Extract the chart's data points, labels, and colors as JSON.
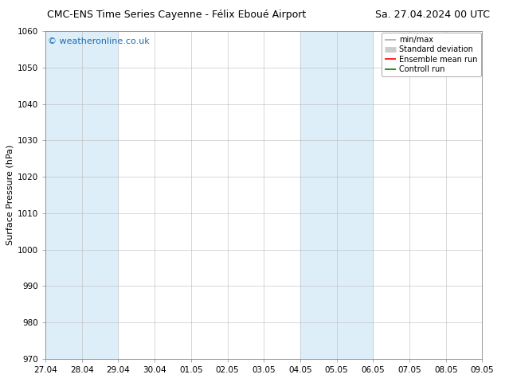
{
  "title_left": "CMC-ENS Time Series Cayenne - Félix Eboué Airport",
  "title_right": "Sa. 27.04.2024 00 UTC",
  "ylabel": "Surface Pressure (hPa)",
  "ylim": [
    970,
    1060
  ],
  "yticks": [
    970,
    980,
    990,
    1000,
    1010,
    1020,
    1030,
    1040,
    1050,
    1060
  ],
  "x_tick_labels": [
    "27.04",
    "28.04",
    "29.04",
    "30.04",
    "01.05",
    "02.05",
    "03.05",
    "04.05",
    "05.05",
    "06.05",
    "07.05",
    "08.05",
    "09.05"
  ],
  "x_tick_positions": [
    0,
    1,
    2,
    3,
    4,
    5,
    6,
    7,
    8,
    9,
    10,
    11,
    12
  ],
  "shaded_bands": [
    {
      "x_start": 0,
      "x_end": 1,
      "color": "#ddeef8"
    },
    {
      "x_start": 1,
      "x_end": 2,
      "color": "#ddeef8"
    },
    {
      "x_start": 7,
      "x_end": 8,
      "color": "#ddeef8"
    },
    {
      "x_start": 8,
      "x_end": 9,
      "color": "#ddeef8"
    }
  ],
  "background_color": "#ffffff",
  "plot_bg_color": "#ffffff",
  "grid_color": "#bbbbbb",
  "watermark": "© weatheronline.co.uk",
  "watermark_color": "#1a6eb5",
  "legend_items": [
    {
      "label": "min/max",
      "color": "#aaaaaa",
      "lw": 1.2
    },
    {
      "label": "Standard deviation",
      "color": "#cccccc",
      "lw": 5
    },
    {
      "label": "Ensemble mean run",
      "color": "#ff0000",
      "lw": 1.2
    },
    {
      "label": "Controll run",
      "color": "#008000",
      "lw": 1.2
    }
  ],
  "font_size_title": 9,
  "font_size_axis": 8,
  "font_size_ticks": 7.5,
  "font_size_legend": 7,
  "font_size_watermark": 8,
  "border_color": "#888888"
}
